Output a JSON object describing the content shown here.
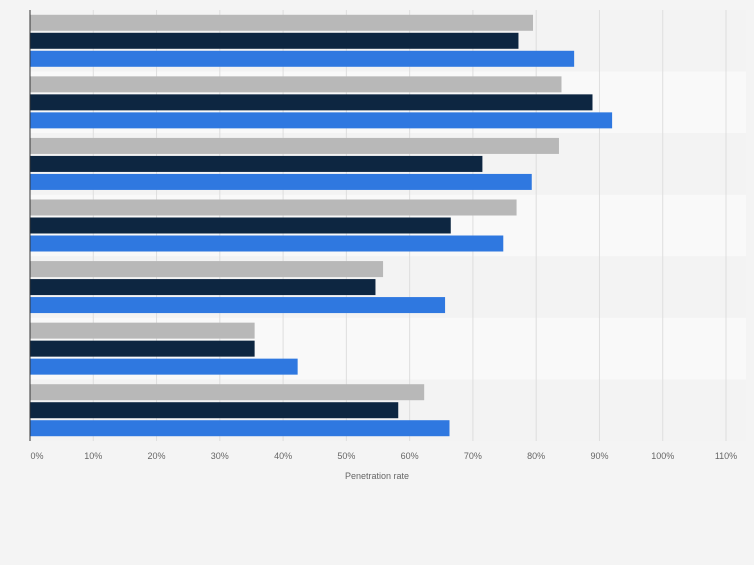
{
  "chart_data": {
    "type": "bar",
    "orientation": "horizontal",
    "categories": [
      "",
      "",
      "",
      "",
      "",
      "",
      ""
    ],
    "series": [
      {
        "color": "#b8b8b8",
        "values": [
          79.5,
          84,
          83.6,
          76.9,
          55.8,
          35.5,
          62.3
        ]
      },
      {
        "color": "#0d2641",
        "values": [
          77.2,
          88.9,
          71.5,
          66.5,
          54.6,
          35.5,
          58.2
        ]
      },
      {
        "color": "#2f78e0",
        "values": [
          86,
          92,
          79.3,
          74.8,
          65.6,
          42.3,
          66.3
        ]
      }
    ],
    "xlim": [
      0,
      110
    ],
    "xticks": [
      "0%",
      "10%",
      "20%",
      "30%",
      "40%",
      "50%",
      "60%",
      "70%",
      "80%",
      "90%",
      "100%",
      "110%"
    ],
    "xlabel": "Penetration rate",
    "grid": true,
    "band_colors": [
      "#f3f3f3",
      "#f9f9f9"
    ]
  }
}
